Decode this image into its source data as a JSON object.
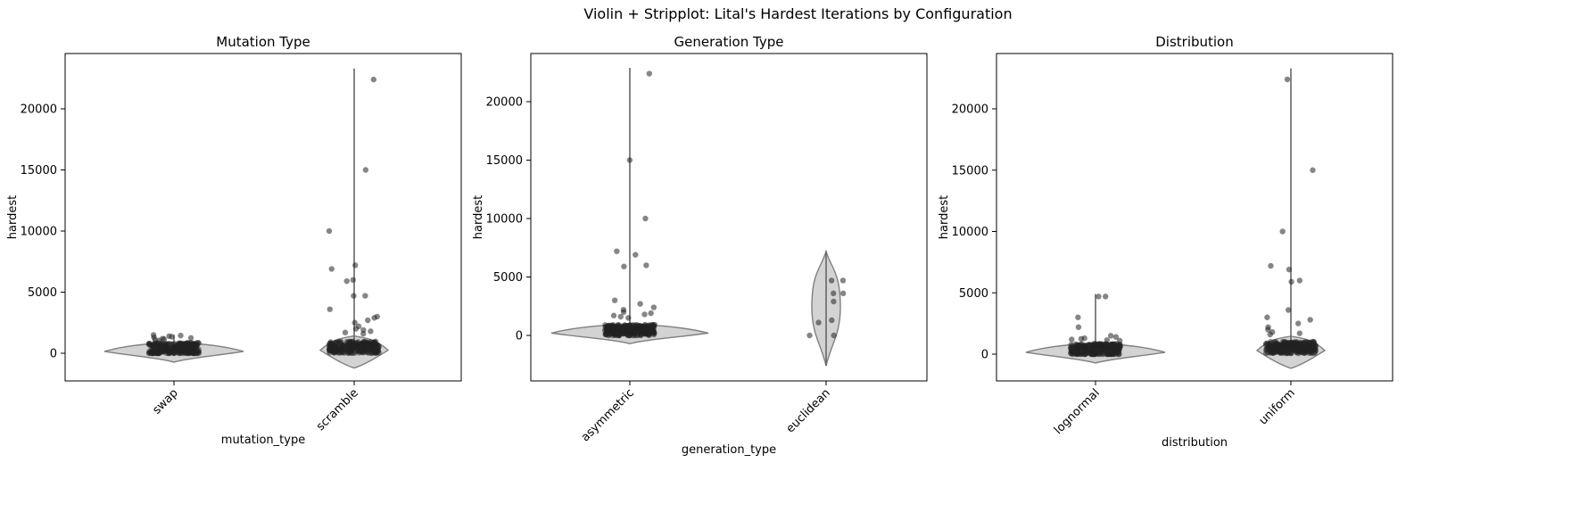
{
  "figure": {
    "suptitle": "Violin + Stripplot: Lital's Hardest Iterations by Configuration"
  },
  "style": {
    "violin_fill": "#d3d3d3",
    "violin_edge": "#808080",
    "point_color": "#222222",
    "axis_color": "#000000"
  },
  "chart_data": [
    {
      "type": "violin",
      "title": "Mutation Type",
      "xlabel": "mutation_type",
      "ylabel": "hardest",
      "categories": [
        "swap",
        "scramble"
      ],
      "ylim": [
        -2200,
        24300
      ],
      "yticks": [
        0,
        5000,
        10000,
        15000,
        20000
      ],
      "ytick_labels": [
        "0",
        "5000",
        "10000",
        "15000",
        "20000"
      ],
      "groups": [
        {
          "name": "swap",
          "min": 0,
          "max": 1500,
          "median": 150,
          "outliers": [
            1500,
            1450,
            1400,
            1350,
            1300,
            1250,
            1200,
            1150,
            1100,
            1050
          ]
        },
        {
          "name": "scramble",
          "min": 0,
          "max": 23300,
          "median": 250,
          "outliers": [
            22400,
            15000,
            10000,
            7200,
            6900,
            6000,
            5900,
            4700,
            4700,
            3600,
            3000,
            2900,
            2700,
            2500,
            2200,
            2000,
            1900,
            1800,
            1700,
            1600
          ]
        }
      ]
    },
    {
      "type": "violin",
      "title": "Generation Type",
      "xlabel": "generation_type",
      "ylabel": "hardest",
      "categories": [
        "asymmetric",
        "euclidean"
      ],
      "ylim": [
        -3900,
        24300
      ],
      "yticks": [
        0,
        5000,
        10000,
        15000,
        20000
      ],
      "ytick_labels": [
        "0",
        "5000",
        "10000",
        "15000",
        "20000"
      ],
      "groups": [
        {
          "name": "asymmetric",
          "min": 0,
          "max": 22900,
          "median": 200,
          "outliers": [
            22400,
            15000,
            10000,
            7200,
            6900,
            6000,
            5900,
            3000,
            2700,
            2400,
            2200,
            2000,
            1900,
            1800,
            1700,
            1600,
            1500
          ]
        },
        {
          "name": "euclidean",
          "min": -2600,
          "max": 7200,
          "median": 2000,
          "points": [
            4700,
            4700,
            3600,
            3600,
            2900,
            1300,
            1100,
            0,
            0
          ]
        }
      ]
    },
    {
      "type": "violin",
      "title": "Distribution",
      "xlabel": "distribution",
      "ylabel": "hardest",
      "categories": [
        "lognormal",
        "uniform"
      ],
      "ylim": [
        -2200,
        24300
      ],
      "yticks": [
        0,
        5000,
        10000,
        15000,
        20000
      ],
      "ytick_labels": [
        "0",
        "5000",
        "10000",
        "15000",
        "20000"
      ],
      "groups": [
        {
          "name": "lognormal",
          "min": 0,
          "max": 4900,
          "median": 150,
          "outliers": [
            4700,
            4700,
            3000,
            2200,
            1500,
            1400,
            1300,
            1250,
            1200,
            1150,
            1100
          ]
        },
        {
          "name": "uniform",
          "min": -900,
          "max": 23300,
          "median": 300,
          "outliers": [
            22400,
            15000,
            10000,
            7200,
            6900,
            6000,
            5900,
            3600,
            3000,
            2800,
            2500,
            2200,
            2000,
            1800,
            1700,
            1600
          ]
        }
      ]
    }
  ]
}
